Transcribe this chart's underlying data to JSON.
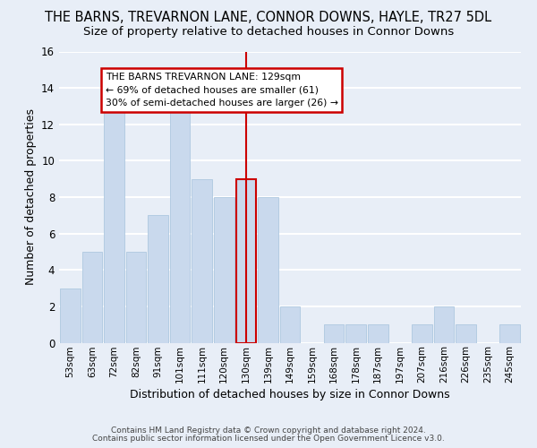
{
  "title": "THE BARNS, TREVARNON LANE, CONNOR DOWNS, HAYLE, TR27 5DL",
  "subtitle": "Size of property relative to detached houses in Connor Downs",
  "xlabel": "Distribution of detached houses by size in Connor Downs",
  "ylabel": "Number of detached properties",
  "footer_line1": "Contains HM Land Registry data © Crown copyright and database right 2024.",
  "footer_line2": "Contains public sector information licensed under the Open Government Licence v3.0.",
  "bins": [
    "53sqm",
    "63sqm",
    "72sqm",
    "82sqm",
    "91sqm",
    "101sqm",
    "111sqm",
    "120sqm",
    "130sqm",
    "139sqm",
    "149sqm",
    "159sqm",
    "168sqm",
    "178sqm",
    "187sqm",
    "197sqm",
    "207sqm",
    "216sqm",
    "226sqm",
    "235sqm",
    "245sqm"
  ],
  "values": [
    3,
    5,
    13,
    5,
    7,
    13,
    9,
    8,
    9,
    8,
    2,
    0,
    1,
    1,
    1,
    0,
    1,
    2,
    1,
    0,
    1
  ],
  "bar_color": "#c9d9ed",
  "bar_edge_color": "#aec8e0",
  "highlight_bin_index": 8,
  "highlight_line_color": "#cc0000",
  "annotation_title": "THE BARNS TREVARNON LANE: 129sqm",
  "annotation_line1": "← 69% of detached houses are smaller (61)",
  "annotation_line2": "30% of semi-detached houses are larger (26) →",
  "annotation_box_edge": "#cc0000",
  "annotation_box_bg": "#ffffff",
  "ylim": [
    0,
    16
  ],
  "yticks": [
    0,
    2,
    4,
    6,
    8,
    10,
    12,
    14,
    16
  ],
  "background_color": "#e8eef7",
  "plot_bg_color": "#e8eef7",
  "grid_color": "#ffffff",
  "title_fontsize": 10.5,
  "subtitle_fontsize": 9.5
}
